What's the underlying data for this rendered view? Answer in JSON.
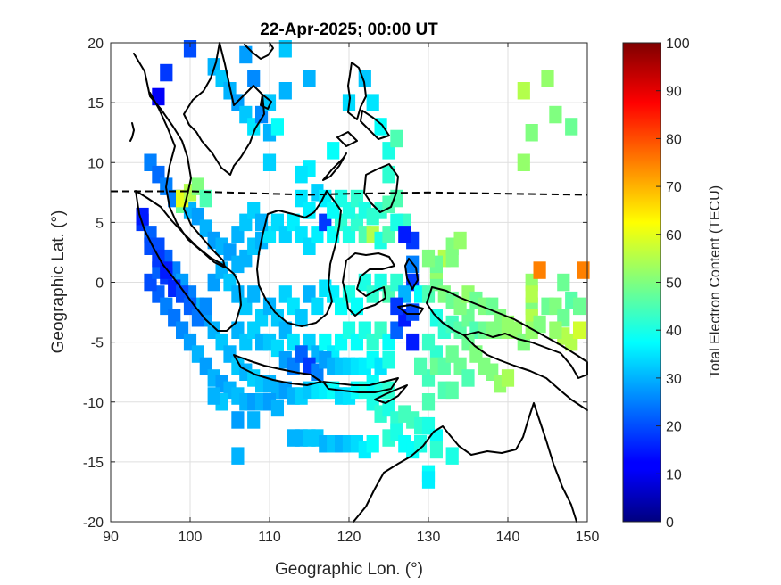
{
  "chart_data": {
    "type": "heatmap",
    "title": "22-Apr-2025; 00:00 UT",
    "xlabel": "Geographic Lon. (°)",
    "ylabel": "Geographic Lat. (°)",
    "colorbar_label": "Total Electron Content (TECU)",
    "xlim": [
      90,
      150
    ],
    "ylim": [
      -20,
      20
    ],
    "clim": [
      0,
      100
    ],
    "colormap": "jet",
    "grid": true,
    "xticks": [
      "90",
      "100",
      "110",
      "120",
      "130",
      "140",
      "150"
    ],
    "yticks": [
      "20",
      "15",
      "10",
      "5",
      "0",
      "-5",
      "-10",
      "-15",
      "-20"
    ],
    "cticks": [
      "100",
      "90",
      "80",
      "70",
      "60",
      "50",
      "40",
      "30",
      "20",
      "10",
      "0"
    ],
    "dip_equator_lat": [
      7.6,
      7.6,
      7.4,
      7.3,
      7.4,
      7.5,
      7.4,
      7.3
    ],
    "dip_equator_lon": [
      90,
      100,
      110,
      115,
      120,
      130,
      140,
      150
    ],
    "points": [
      [
        97,
        17.5,
        18
      ],
      [
        96,
        15.5,
        12
      ],
      [
        103,
        18,
        30
      ],
      [
        104,
        17,
        32
      ],
      [
        105,
        16,
        30
      ],
      [
        106,
        15,
        28
      ],
      [
        107,
        14,
        32
      ],
      [
        108,
        13,
        35
      ],
      [
        109,
        14,
        26
      ],
      [
        110,
        15,
        32
      ],
      [
        110,
        12.5,
        30
      ],
      [
        111,
        13,
        38
      ],
      [
        115,
        17,
        30
      ],
      [
        120,
        15,
        34
      ],
      [
        118,
        11,
        38
      ],
      [
        115,
        9.5,
        36
      ],
      [
        114,
        9,
        35
      ],
      [
        110,
        10,
        33
      ],
      [
        100,
        19.5,
        20
      ],
      [
        107,
        19,
        28
      ],
      [
        108,
        17,
        26
      ],
      [
        112,
        19.5,
        32
      ],
      [
        112,
        16,
        30
      ],
      [
        122,
        17,
        32
      ],
      [
        123,
        15,
        35
      ],
      [
        124,
        13,
        38
      ],
      [
        125,
        11,
        40
      ],
      [
        126,
        12,
        45
      ],
      [
        125,
        9,
        42
      ],
      [
        126,
        7,
        45
      ],
      [
        127,
        5,
        43
      ],
      [
        128,
        3.5,
        18
      ],
      [
        128,
        1.5,
        25
      ],
      [
        128,
        0,
        18
      ],
      [
        129,
        -1,
        38
      ],
      [
        95,
        10,
        25
      ],
      [
        96,
        9,
        23
      ],
      [
        97,
        8,
        25
      ],
      [
        98,
        7,
        25
      ],
      [
        99,
        6.5,
        48
      ],
      [
        100,
        6,
        30
      ],
      [
        101,
        5.5,
        28
      ],
      [
        102,
        4.5,
        30
      ],
      [
        103,
        3.5,
        28
      ],
      [
        104,
        3,
        30
      ],
      [
        105,
        2.5,
        28
      ],
      [
        94,
        5,
        18
      ],
      [
        95,
        4,
        22
      ],
      [
        96,
        3,
        20
      ],
      [
        97,
        2,
        22
      ],
      [
        98,
        1,
        25
      ],
      [
        99,
        0,
        28
      ],
      [
        100,
        -1,
        25
      ],
      [
        101,
        -2,
        30
      ],
      [
        102,
        -3,
        28
      ],
      [
        103,
        -4,
        30
      ],
      [
        104,
        -5,
        32
      ],
      [
        105,
        -6,
        30
      ],
      [
        106,
        -7,
        32
      ],
      [
        107,
        -7.5,
        30
      ],
      [
        108,
        -8,
        33
      ],
      [
        109,
        -8.5,
        32
      ],
      [
        110,
        -8.5,
        30
      ],
      [
        111,
        -9,
        30
      ],
      [
        112,
        -9,
        28
      ],
      [
        113,
        -9.5,
        30
      ],
      [
        114,
        -9.5,
        33
      ],
      [
        115,
        -9,
        32
      ],
      [
        116,
        -9,
        35
      ],
      [
        117,
        -9,
        36
      ],
      [
        118,
        -9,
        38
      ],
      [
        119,
        -9.5,
        34
      ],
      [
        120,
        -9.5,
        35
      ],
      [
        121,
        -9,
        38
      ],
      [
        122,
        -9,
        40
      ],
      [
        123,
        -8.5,
        38
      ],
      [
        124,
        -9,
        40
      ],
      [
        125,
        -9,
        42
      ],
      [
        96,
        -1,
        22
      ],
      [
        97,
        -2,
        25
      ],
      [
        98,
        -3,
        24
      ],
      [
        99,
        -4,
        26
      ],
      [
        100,
        -5,
        28
      ],
      [
        101,
        -6,
        30
      ],
      [
        102,
        -7,
        28
      ],
      [
        103,
        -8,
        30
      ],
      [
        104,
        -8.5,
        28
      ],
      [
        105,
        -9,
        30
      ],
      [
        106,
        -9.5,
        31
      ],
      [
        107,
        -10,
        30
      ],
      [
        108,
        -10,
        28
      ],
      [
        109,
        -10,
        30
      ],
      [
        110,
        -10,
        28
      ],
      [
        111,
        -10.5,
        30
      ],
      [
        95,
        0,
        20
      ],
      [
        96,
        1,
        22
      ],
      [
        97,
        0.5,
        18
      ],
      [
        98,
        -0.5,
        16
      ],
      [
        99,
        -1,
        20
      ],
      [
        100,
        -2,
        22
      ],
      [
        101,
        -3,
        24
      ],
      [
        102,
        -2,
        26
      ],
      [
        103,
        0,
        28
      ],
      [
        104,
        1,
        30
      ],
      [
        105,
        0,
        32
      ],
      [
        106,
        1.5,
        30
      ],
      [
        107,
        2,
        30
      ],
      [
        108,
        3,
        32
      ],
      [
        109,
        3.5,
        30
      ],
      [
        110,
        4,
        35
      ],
      [
        111,
        5,
        34
      ],
      [
        112,
        4,
        33
      ],
      [
        113,
        5,
        36
      ],
      [
        114,
        4,
        35
      ],
      [
        115,
        3,
        34
      ],
      [
        116,
        4,
        36
      ],
      [
        117,
        5,
        18
      ],
      [
        118,
        4,
        38
      ],
      [
        119,
        5,
        42
      ],
      [
        120,
        4,
        40
      ],
      [
        121,
        5,
        42
      ],
      [
        122,
        4,
        45
      ],
      [
        123,
        4,
        55
      ],
      [
        124,
        3.5,
        40
      ],
      [
        125,
        4,
        45
      ],
      [
        126,
        5,
        40
      ],
      [
        127,
        4,
        15
      ],
      [
        106,
        -1,
        30
      ],
      [
        107,
        -2,
        32
      ],
      [
        108,
        -1,
        30
      ],
      [
        109,
        -3,
        33
      ],
      [
        110,
        -2,
        30
      ],
      [
        111,
        -3,
        32
      ],
      [
        112,
        -1,
        33
      ],
      [
        113,
        -2,
        35
      ],
      [
        114,
        -3,
        32
      ],
      [
        115,
        -1,
        30
      ],
      [
        116,
        -2,
        34
      ],
      [
        117,
        -0.5,
        35
      ],
      [
        118,
        -1,
        36
      ],
      [
        119,
        -2,
        38
      ],
      [
        120,
        -1,
        40
      ],
      [
        121,
        -2,
        38
      ],
      [
        122,
        0,
        40
      ],
      [
        123,
        -1,
        42
      ],
      [
        124,
        0,
        40
      ],
      [
        125,
        -1,
        45
      ],
      [
        126,
        0,
        42
      ],
      [
        127,
        -1,
        30
      ],
      [
        106,
        -4,
        30
      ],
      [
        107,
        -5,
        32
      ],
      [
        108,
        -4,
        33
      ],
      [
        109,
        -5,
        30
      ],
      [
        110,
        -5,
        32
      ],
      [
        111,
        -5.5,
        34
      ],
      [
        112,
        -4,
        30
      ],
      [
        113,
        -5,
        35
      ],
      [
        114,
        -6,
        36
      ],
      [
        115,
        -5,
        33
      ],
      [
        116,
        -6,
        30
      ],
      [
        117,
        -5,
        38
      ],
      [
        118,
        -6,
        36
      ],
      [
        119,
        -5,
        38
      ],
      [
        120,
        -4,
        40
      ],
      [
        121,
        -5,
        38
      ],
      [
        122,
        -4,
        40
      ],
      [
        123,
        -5,
        42
      ],
      [
        124,
        -4,
        43
      ],
      [
        125,
        -5,
        38
      ],
      [
        126,
        -4,
        22
      ],
      [
        127,
        -3,
        15
      ],
      [
        128,
        -5,
        15
      ],
      [
        126,
        -2,
        18
      ],
      [
        128,
        -2.5,
        20
      ],
      [
        112,
        -6.5,
        28
      ],
      [
        113,
        -7,
        25
      ],
      [
        114,
        -6,
        22
      ],
      [
        115,
        -7,
        18
      ],
      [
        116,
        -7.5,
        25
      ],
      [
        117,
        -6.5,
        28
      ],
      [
        118,
        -7,
        30
      ],
      [
        119,
        -7,
        32
      ],
      [
        120,
        -7,
        33
      ],
      [
        121,
        -7,
        35
      ],
      [
        122,
        -7,
        36
      ],
      [
        123,
        -6.5,
        38
      ],
      [
        124,
        -7,
        35
      ],
      [
        125,
        -6.5,
        40
      ],
      [
        106,
        4,
        30
      ],
      [
        107,
        5,
        32
      ],
      [
        108,
        6,
        33
      ],
      [
        109,
        5,
        30
      ],
      [
        114,
        7,
        35
      ],
      [
        115,
        6,
        36
      ],
      [
        116,
        7.5,
        33
      ],
      [
        117,
        7,
        36
      ],
      [
        118,
        6,
        38
      ],
      [
        119,
        7,
        40
      ],
      [
        120,
        6,
        40
      ],
      [
        121,
        7,
        42
      ],
      [
        122,
        6,
        40
      ],
      [
        123,
        5.5,
        42
      ],
      [
        124,
        6,
        42
      ],
      [
        125,
        6.5,
        45
      ],
      [
        104,
        -10,
        32
      ],
      [
        106,
        -11.5,
        28
      ],
      [
        108,
        -11.5,
        30
      ],
      [
        106,
        -14.5,
        30
      ],
      [
        103,
        -9.5,
        30
      ],
      [
        94,
        5.5,
        15
      ],
      [
        95,
        3,
        20
      ],
      [
        96,
        2,
        18
      ],
      [
        97,
        1,
        15
      ],
      [
        123,
        -10,
        40
      ],
      [
        124,
        -11,
        42
      ],
      [
        125,
        -10.5,
        40
      ],
      [
        126,
        -11.5,
        42
      ],
      [
        127,
        -11,
        44
      ],
      [
        128,
        -11.5,
        44
      ],
      [
        129,
        -12,
        42
      ],
      [
        125,
        -13,
        42
      ],
      [
        126,
        -12.5,
        40
      ],
      [
        127,
        -13.5,
        38
      ],
      [
        128,
        -14,
        38
      ],
      [
        129,
        -13.5,
        40
      ],
      [
        130,
        -12,
        40
      ],
      [
        131,
        -13,
        38
      ],
      [
        113,
        -13,
        30
      ],
      [
        114,
        -13,
        30
      ],
      [
        115,
        -13,
        32
      ],
      [
        116,
        -13,
        32
      ],
      [
        117,
        -13.5,
        30
      ],
      [
        118,
        -13.5,
        32
      ],
      [
        119,
        -13.5,
        30
      ],
      [
        120,
        -13.5,
        32
      ],
      [
        121,
        -13.5,
        34
      ],
      [
        122,
        -14,
        36
      ],
      [
        123,
        -13.5,
        38
      ],
      [
        130,
        -16,
        38
      ],
      [
        130,
        -16.5,
        36
      ],
      [
        131,
        -14,
        42
      ],
      [
        133,
        -14.5,
        40
      ],
      [
        130,
        -10,
        45
      ],
      [
        130,
        -8,
        44
      ],
      [
        132,
        -9,
        45
      ],
      [
        131,
        -6,
        42
      ],
      [
        130,
        -5,
        43
      ],
      [
        129,
        -7,
        45
      ],
      [
        131,
        -7,
        48
      ],
      [
        133,
        -9,
        46
      ],
      [
        131,
        -3,
        40
      ],
      [
        132,
        -4,
        42
      ],
      [
        133,
        -3.5,
        44
      ],
      [
        134,
        -4,
        46
      ],
      [
        135,
        -3,
        48
      ],
      [
        136,
        -4,
        45
      ],
      [
        137,
        -4,
        48
      ],
      [
        138,
        -4,
        50
      ],
      [
        139,
        -4,
        50
      ],
      [
        140,
        -4,
        52
      ],
      [
        130,
        -1,
        45
      ],
      [
        131,
        0,
        48
      ],
      [
        132,
        -1,
        50
      ],
      [
        133,
        -1.5,
        48
      ],
      [
        134,
        -2,
        50
      ],
      [
        135,
        -1,
        52
      ],
      [
        136,
        -1.5,
        48
      ],
      [
        137,
        -2,
        50
      ],
      [
        138,
        -2,
        48
      ],
      [
        139,
        -3,
        50
      ],
      [
        140,
        -3.5,
        52
      ],
      [
        131,
        1,
        52
      ],
      [
        132,
        2,
        55
      ],
      [
        133,
        3,
        50
      ],
      [
        134,
        3.5,
        52
      ],
      [
        131,
        1.5,
        48
      ],
      [
        130,
        2,
        50
      ],
      [
        133,
        2,
        50
      ],
      [
        135,
        -5,
        48
      ],
      [
        136,
        -6,
        50
      ],
      [
        137,
        -7,
        50
      ],
      [
        138,
        -7.5,
        50
      ],
      [
        139,
        -8.5,
        52
      ],
      [
        140,
        -8,
        54
      ],
      [
        132,
        -7,
        46
      ],
      [
        133,
        -6,
        48
      ],
      [
        134,
        -7,
        48
      ],
      [
        135,
        -8,
        45
      ],
      [
        141,
        -4,
        52
      ],
      [
        142,
        -5,
        50
      ],
      [
        143,
        -2,
        50
      ],
      [
        143,
        0,
        52
      ],
      [
        143,
        -1,
        55
      ],
      [
        143,
        -3,
        55
      ],
      [
        143,
        -4,
        52
      ],
      [
        144,
        -3.5,
        50
      ],
      [
        145,
        -2,
        48
      ],
      [
        146,
        -2,
        50
      ],
      [
        147,
        -3,
        48
      ],
      [
        147,
        -4.5,
        55
      ],
      [
        148,
        -5,
        55
      ],
      [
        149,
        -4,
        58
      ],
      [
        146,
        -4,
        52
      ],
      [
        147,
        0,
        48
      ],
      [
        148,
        -1.5,
        46
      ],
      [
        149,
        -2,
        48
      ],
      [
        144,
        1,
        75
      ],
      [
        149.5,
        1,
        75
      ],
      [
        142,
        16,
        55
      ],
      [
        145,
        17,
        52
      ],
      [
        146,
        14,
        50
      ],
      [
        148,
        13,
        48
      ],
      [
        143,
        12.5,
        50
      ],
      [
        142,
        10,
        52
      ],
      [
        99,
        7,
        60
      ],
      [
        100,
        7.5,
        55
      ],
      [
        101,
        8,
        50
      ],
      [
        102,
        7,
        45
      ]
    ]
  }
}
